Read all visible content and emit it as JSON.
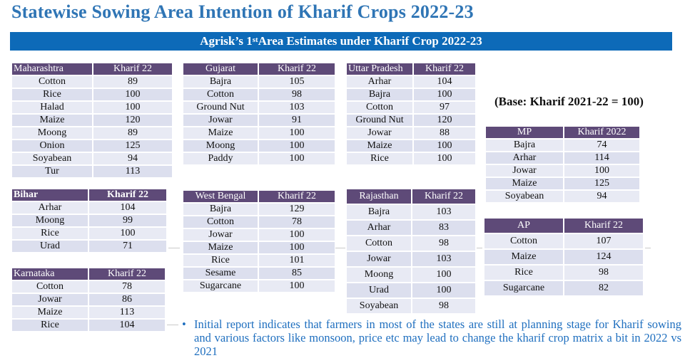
{
  "title": "Statewise Sowing Area Intention of Kharif Crops 2022-23",
  "banner": {
    "pre": "Agrisk’s   1",
    "sup": "st",
    "post": " Area Estimates under Kharif Crop 2022-23"
  },
  "base_note": "(Base: Kharif 2021-22 = 100)",
  "tables": {
    "maharashtra": {
      "state": "Maharashtra",
      "col": "Kharif 22",
      "rows": [
        [
          "Cotton",
          "89"
        ],
        [
          "Rice",
          "100"
        ],
        [
          "Halad",
          "100"
        ],
        [
          "Maize",
          "120"
        ],
        [
          "Moong",
          "89"
        ],
        [
          "Onion",
          "125"
        ],
        [
          "Soyabean",
          "94"
        ],
        [
          "Tur",
          "113"
        ]
      ]
    },
    "gujarat": {
      "state": "Gujarat",
      "col": "Kharif 22",
      "rows": [
        [
          "Bajra",
          "105"
        ],
        [
          "Cotton",
          "98"
        ],
        [
          "Ground Nut",
          "103"
        ],
        [
          "Jowar",
          "91"
        ],
        [
          "Maize",
          "100"
        ],
        [
          "Moong",
          "100"
        ],
        [
          "Paddy",
          "100"
        ]
      ]
    },
    "up": {
      "state": "Uttar Pradesh",
      "col": "Kharif 22",
      "rows": [
        [
          "Arhar",
          "104"
        ],
        [
          "Bajra",
          "100"
        ],
        [
          "Cotton",
          "97"
        ],
        [
          "Ground Nut",
          "120"
        ],
        [
          "Jowar",
          "88"
        ],
        [
          "Maize",
          "100"
        ],
        [
          "Rice",
          "100"
        ]
      ]
    },
    "mp": {
      "state": "MP",
      "col": "Kharif 2022",
      "rows": [
        [
          "Bajra",
          "74"
        ],
        [
          "Arhar",
          "114"
        ],
        [
          "Jowar",
          "100"
        ],
        [
          "Maize",
          "125"
        ],
        [
          "Soyabean",
          "94"
        ]
      ]
    },
    "bihar": {
      "state": "Bihar",
      "col": "Kharif 22",
      "rows": [
        [
          "Arhar",
          "104"
        ],
        [
          "Moong",
          "99"
        ],
        [
          "Rice",
          "100"
        ],
        [
          "Urad",
          "71"
        ]
      ]
    },
    "westbengal": {
      "state": "West Bengal",
      "col": "Kharif 22",
      "rows": [
        [
          "Bajra",
          "129"
        ],
        [
          "Cotton",
          "78"
        ],
        [
          "Jowar",
          "100"
        ],
        [
          "Maize",
          "100"
        ],
        [
          "Rice",
          "101"
        ],
        [
          "Sesame",
          "85"
        ],
        [
          "Sugarcane",
          "100"
        ]
      ]
    },
    "rajasthan": {
      "state": "Rajasthan",
      "col": "Kharif 22",
      "rows": [
        [
          "Bajra",
          "103"
        ],
        [
          "Arhar",
          "83"
        ],
        [
          "Cotton",
          "98"
        ],
        [
          "Jowar",
          "103"
        ],
        [
          "Moong",
          "100"
        ],
        [
          "Urad",
          "100"
        ],
        [
          "Soyabean",
          "98"
        ]
      ]
    },
    "ap": {
      "state": "AP",
      "col": "Kharif 22",
      "rows": [
        [
          "Cotton",
          "107"
        ],
        [
          "Maize",
          "124"
        ],
        [
          "Rice",
          "98"
        ],
        [
          "Sugarcane",
          "82"
        ]
      ]
    },
    "karnataka": {
      "state": "Karnataka",
      "col": "Kharif 22",
      "rows": [
        [
          "Cotton",
          "78"
        ],
        [
          "Jowar",
          "86"
        ],
        [
          "Maize",
          "113"
        ],
        [
          "Rice",
          "104"
        ]
      ]
    }
  },
  "bullet": "Initial report indicates that farmers in most of the states are still at planning stage for Kharif sowing and various factors like monsoon, price etc may lead to change the kharif crop matrix a bit in 2022 vs 2021"
}
